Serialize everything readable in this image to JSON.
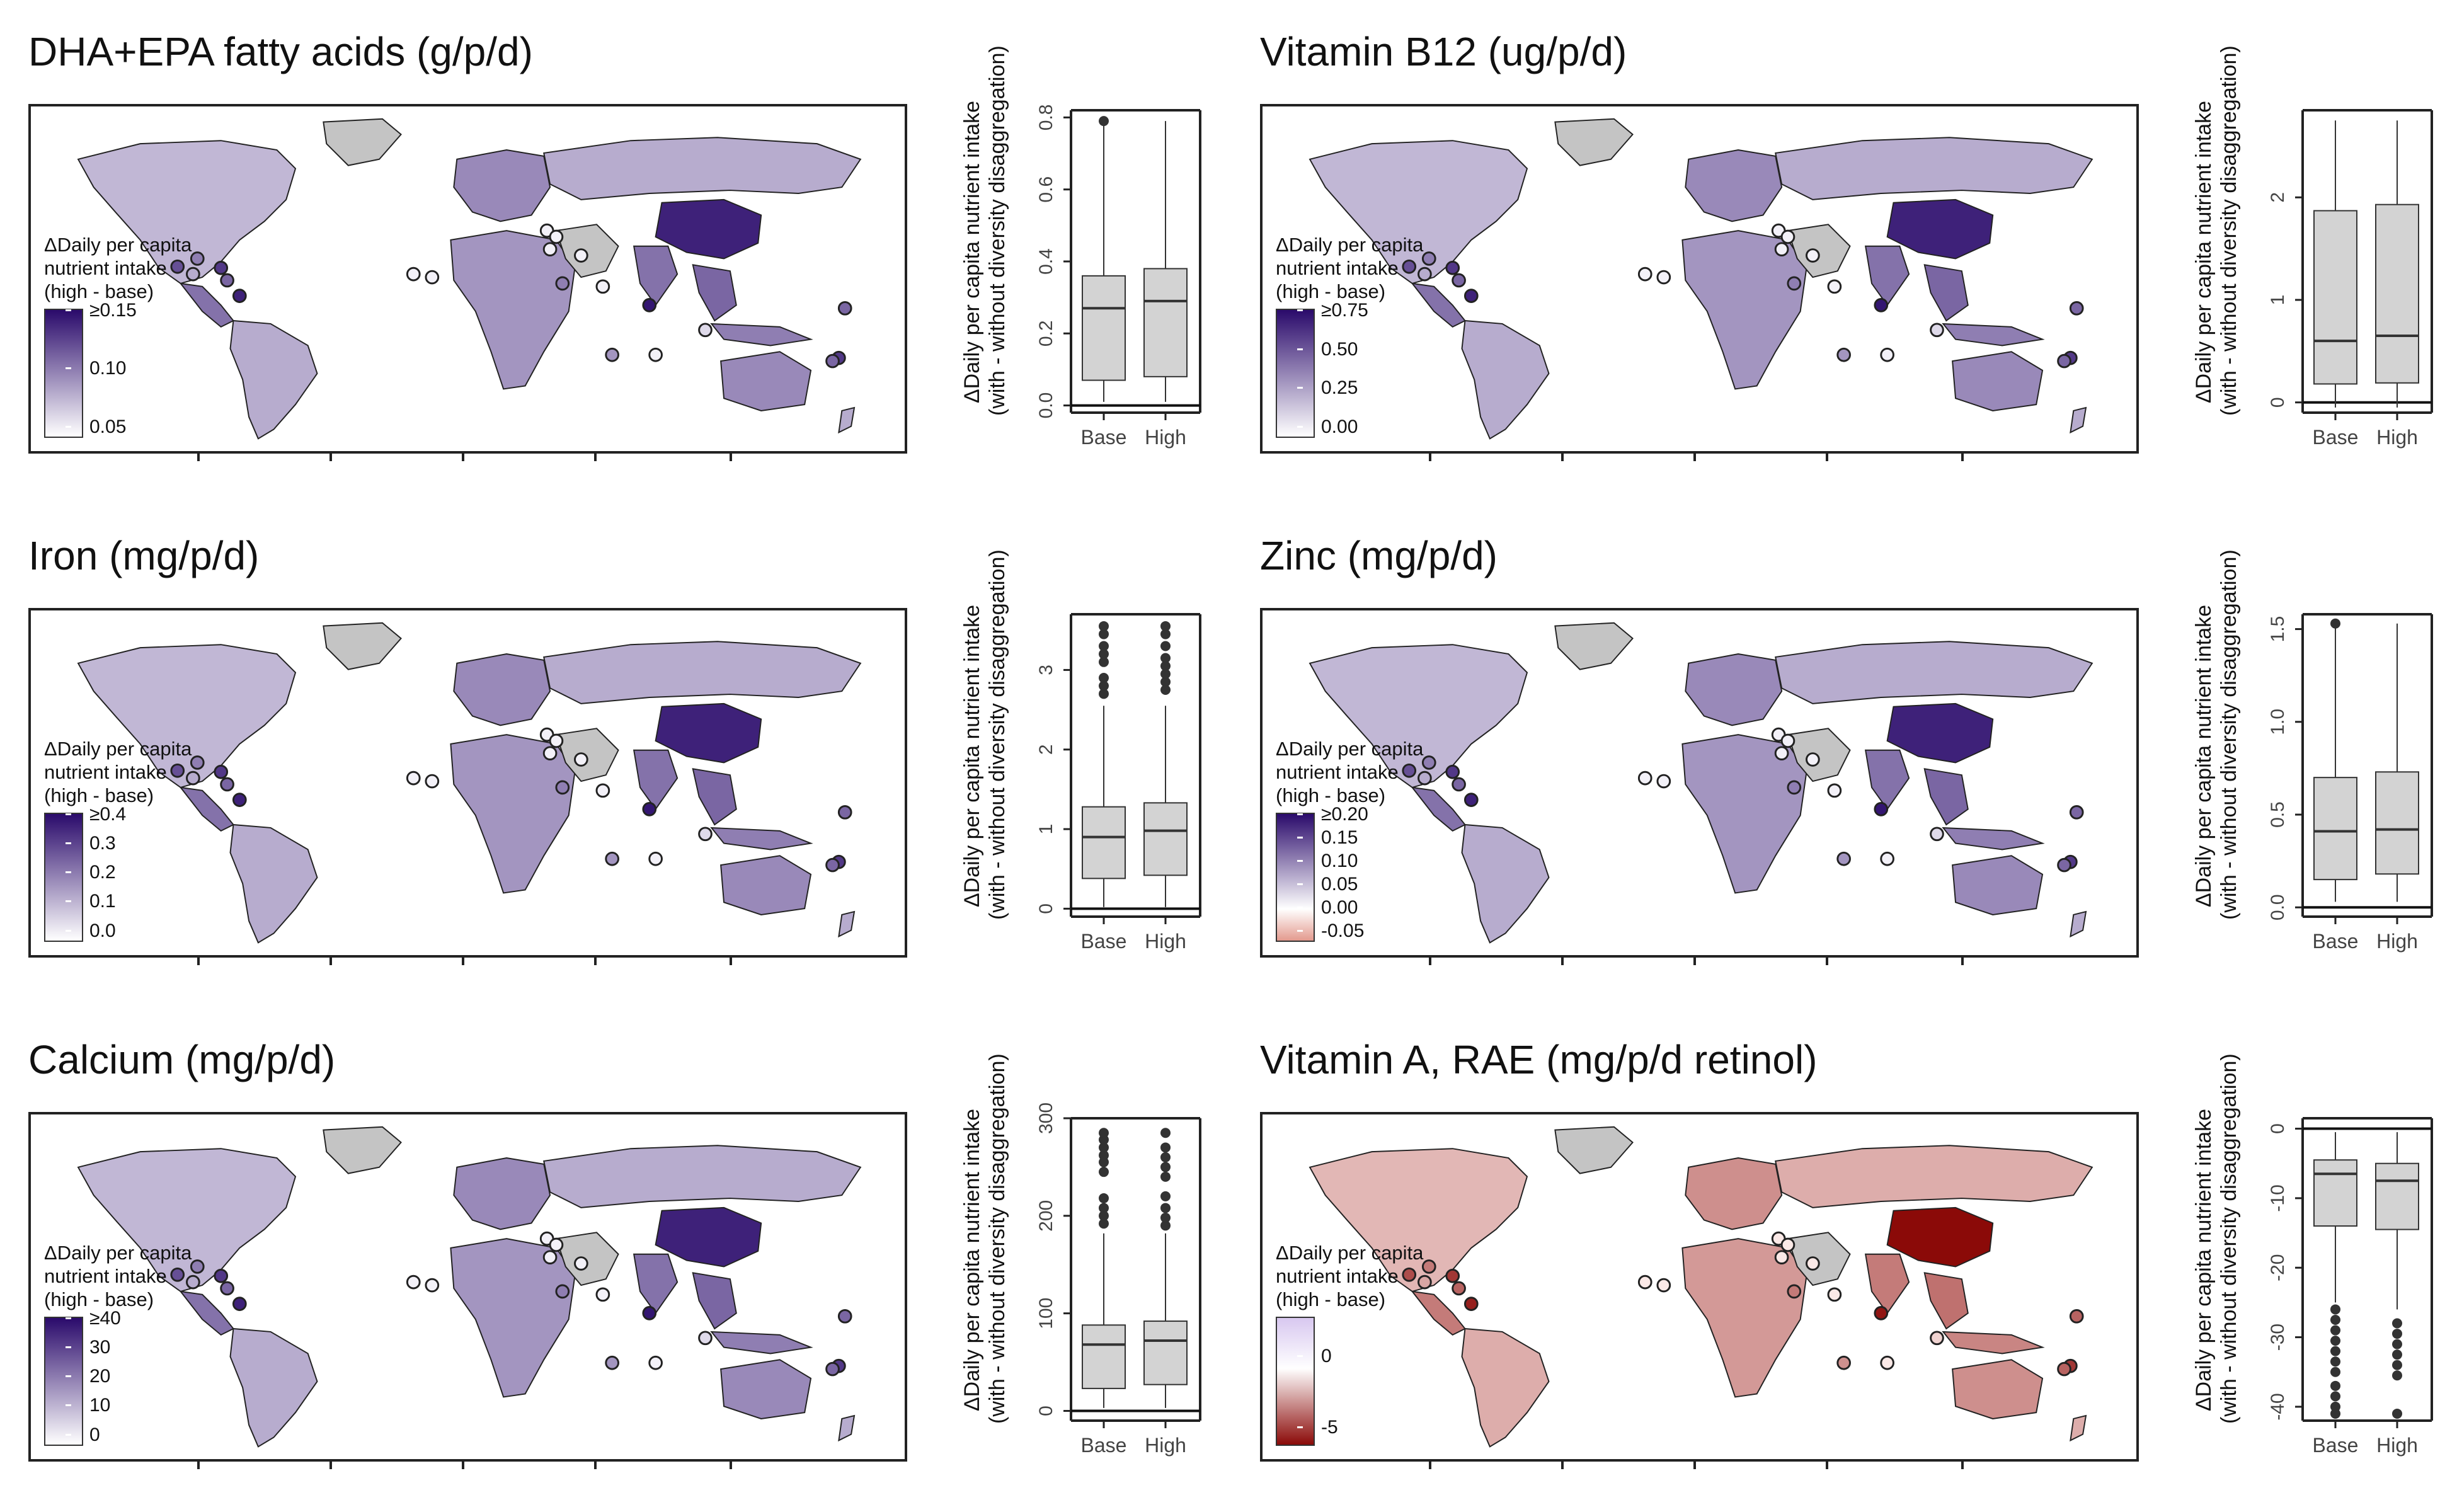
{
  "legend_title": [
    "ΔDaily per capita",
    "nutrient intake",
    "(high - base)"
  ],
  "box_ylabel": [
    "ΔDaily per capita nutrient intake",
    "(with - without diversity disaggregation)"
  ],
  "colors": {
    "purple_low": "#f3f1f8",
    "purple_high": "#2a0a6b",
    "red_high": "#8b0a08",
    "na_gray": "#c4c4c4",
    "box_fill": "#d3d3d3",
    "ocean": "#ffffff",
    "border": "#222222"
  },
  "chart_data": [
    {
      "type": "box",
      "title": "DHA+EPA fatty acids (g/p/d)",
      "legend_ticks": [
        "≥0.15",
        "0.10",
        "0.05"
      ],
      "legend_scale": "purple",
      "categories": [
        "Base",
        "High"
      ],
      "ylim": [
        -0.02,
        0.82
      ],
      "yticks": [
        0.0,
        0.2,
        0.4,
        0.6,
        0.8
      ],
      "ytick_labels": [
        "0.0",
        "0.2",
        "0.4",
        "0.6",
        "0.8"
      ],
      "zero_line": 0,
      "boxes": [
        {
          "name": "Base",
          "whisker_low": 0.01,
          "q1": 0.07,
          "median": 0.27,
          "q3": 0.36,
          "whisker_high": 0.79,
          "outliers": [
            0.79
          ]
        },
        {
          "name": "High",
          "whisker_low": 0.01,
          "q1": 0.08,
          "median": 0.29,
          "q3": 0.38,
          "whisker_high": 0.79,
          "outliers": []
        }
      ]
    },
    {
      "type": "box",
      "title": "Vitamin B12 (ug/p/d)",
      "legend_ticks": [
        "≥0.75",
        "0.50",
        "0.25",
        "0.00"
      ],
      "legend_scale": "purple",
      "categories": [
        "Base",
        "High"
      ],
      "ylim": [
        -0.1,
        2.85
      ],
      "yticks": [
        0,
        1,
        2
      ],
      "ytick_labels": [
        "0",
        "1",
        "2"
      ],
      "zero_line": 0,
      "boxes": [
        {
          "name": "Base",
          "whisker_low": -0.05,
          "q1": 0.18,
          "median": 0.6,
          "q3": 1.87,
          "whisker_high": 2.75,
          "outliers": []
        },
        {
          "name": "High",
          "whisker_low": -0.05,
          "q1": 0.19,
          "median": 0.65,
          "q3": 1.93,
          "whisker_high": 2.75,
          "outliers": []
        }
      ]
    },
    {
      "type": "box",
      "title": "Iron (mg/p/d)",
      "legend_ticks": [
        "≥0.4",
        "0.3",
        "0.2",
        "0.1",
        "0.0"
      ],
      "legend_scale": "purple",
      "categories": [
        "Base",
        "High"
      ],
      "ylim": [
        -0.1,
        3.7
      ],
      "yticks": [
        0,
        1,
        2,
        3
      ],
      "ytick_labels": [
        "0",
        "1",
        "2",
        "3"
      ],
      "zero_line": 0,
      "boxes": [
        {
          "name": "Base",
          "whisker_low": 0.02,
          "q1": 0.38,
          "median": 0.9,
          "q3": 1.28,
          "whisker_high": 2.55,
          "outliers": [
            2.7,
            2.8,
            2.9,
            3.1,
            3.2,
            3.3,
            3.45,
            3.55
          ]
        },
        {
          "name": "High",
          "whisker_low": 0.02,
          "q1": 0.42,
          "median": 0.98,
          "q3": 1.33,
          "whisker_high": 2.55,
          "outliers": [
            2.75,
            2.85,
            2.95,
            3.05,
            3.15,
            3.3,
            3.45,
            3.55
          ]
        }
      ]
    },
    {
      "type": "box",
      "title": "Zinc (mg/p/d)",
      "legend_ticks": [
        "≥0.20",
        "0.15",
        "0.10",
        "0.05",
        "0.00",
        "-0.05"
      ],
      "legend_scale": "diverging_purple",
      "categories": [
        "Base",
        "High"
      ],
      "ylim": [
        -0.05,
        1.58
      ],
      "yticks": [
        0.0,
        0.5,
        1.0,
        1.5
      ],
      "ytick_labels": [
        "0.0",
        "0.5",
        "1.0",
        "1.5"
      ],
      "zero_line": 0,
      "boxes": [
        {
          "name": "Base",
          "whisker_low": 0.03,
          "q1": 0.15,
          "median": 0.41,
          "q3": 0.7,
          "whisker_high": 1.53,
          "outliers": [
            1.53
          ]
        },
        {
          "name": "High",
          "whisker_low": 0.03,
          "q1": 0.18,
          "median": 0.42,
          "q3": 0.73,
          "whisker_high": 1.53,
          "outliers": []
        }
      ]
    },
    {
      "type": "box",
      "title": "Calcium (mg/p/d)",
      "legend_ticks": [
        "≥40",
        "30",
        "20",
        "10",
        "0"
      ],
      "legend_scale": "purple",
      "categories": [
        "Base",
        "High"
      ],
      "ylim": [
        -10,
        300
      ],
      "yticks": [
        0,
        100,
        200,
        300
      ],
      "ytick_labels": [
        "0",
        "100",
        "200",
        "300"
      ],
      "zero_line": 0,
      "boxes": [
        {
          "name": "Base",
          "whisker_low": 3,
          "q1": 23,
          "median": 68,
          "q3": 88,
          "whisker_high": 182,
          "outliers": [
            192,
            200,
            208,
            218,
            245,
            255,
            262,
            270,
            278,
            285
          ]
        },
        {
          "name": "High",
          "whisker_low": 3,
          "q1": 27,
          "median": 72,
          "q3": 92,
          "whisker_high": 182,
          "outliers": [
            190,
            198,
            208,
            220,
            240,
            250,
            260,
            270,
            285
          ]
        }
      ]
    },
    {
      "type": "box",
      "title": "Vitamin A, RAE (mg/p/d retinol)",
      "legend_ticks": [
        "0",
        "-5"
      ],
      "legend_scale": "red",
      "categories": [
        "Base",
        "High"
      ],
      "ylim": [
        -42,
        1.5
      ],
      "yticks": [
        0,
        -10,
        -20,
        -30,
        -40
      ],
      "ytick_labels": [
        "0",
        "-10",
        "-20",
        "-30",
        "-40"
      ],
      "zero_line": 0,
      "boxes": [
        {
          "name": "Base",
          "whisker_low": -25,
          "q1": -14,
          "median": -6.5,
          "q3": -4.5,
          "whisker_high": -0.5,
          "outliers": [
            -26,
            -27.5,
            -29,
            -30.5,
            -32,
            -33.5,
            -35,
            -37,
            -38.5,
            -40,
            -41
          ]
        },
        {
          "name": "High",
          "whisker_low": -26,
          "q1": -14.5,
          "median": -7.5,
          "q3": -5,
          "whisker_high": -0.5,
          "outliers": [
            -28,
            -29.5,
            -31,
            -32.5,
            -34,
            -35.5,
            -41
          ]
        }
      ]
    }
  ]
}
